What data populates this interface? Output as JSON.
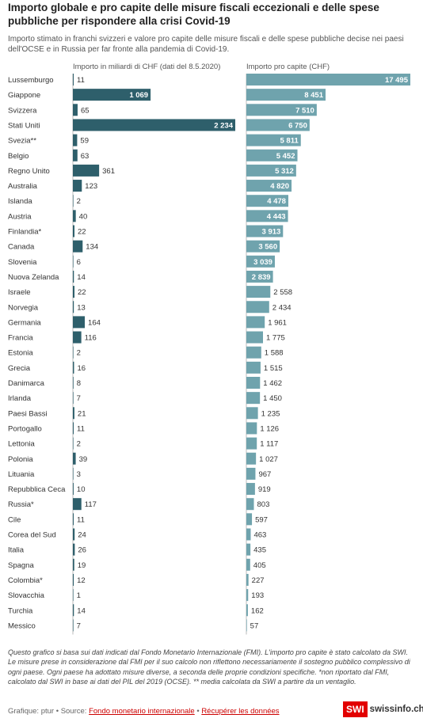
{
  "title": "Importo globale e pro capite delle misure fiscali eccezionali e delle spese pubbliche per rispondere alla crisi Covid-19",
  "subtitle": "Importo stimato in franchi svizzeri e valore pro capite delle misure fiscali e delle spese pubbliche decise nei paesi dell'OCSE e in Russia per far fronte alla pandemia di Covid-19.",
  "notes": "Questo grafico si basa sui dati indicati dal Fondo Monetario Internazionale (FMI). L'importo pro capite è stato calcolato da SWI. Le misure prese in considerazione dal FMI per il suo calcolo non riflettono necessariamente il sostegno pubblico complessivo di ogni paese. Ogni paese ha adottato misure diverse, a seconda delle proprie condizioni specifiche. *non riportato dal FMI, calcolato dal SWI in base ai dati del PIL del 2019 (OCSE). ** media calcolata da SWI a partire da un ventaglio.",
  "footer": {
    "credit": "Grafique: ptur • Source:",
    "source_link": "Fondo monetario internazionale",
    "separator": "•",
    "data_link": "Récupérer les données"
  },
  "logo": {
    "box": "SWI",
    "text": "swissinfo.ch"
  },
  "colors": {
    "total_bar": "#2e5f6b",
    "per_capita_bar": "#6fa3ad"
  },
  "chart_data": {
    "type": "bar",
    "categories": [
      "Lussemburgo",
      "Giappone",
      "Svizzera",
      "Stati Uniti",
      "Svezia**",
      "Belgio",
      "Regno Unito",
      "Australia",
      "Islanda",
      "Austria",
      "Finlandia*",
      "Canada",
      "Slovenia",
      "Nuova Zelanda",
      "Israele",
      "Norvegia",
      "Germania",
      "Francia",
      "Estonia",
      "Grecia",
      "Danimarca",
      "Irlanda",
      "Paesi Bassi",
      "Portogallo",
      "Lettonia",
      "Polonia",
      "Lituania",
      "Repubblica Ceca",
      "Russia*",
      "Cile",
      "Corea del Sud",
      "Italia",
      "Spagna",
      "Colombia*",
      "Slovacchia",
      "Turchia",
      "Messico"
    ],
    "series": [
      {
        "name": "Importo in miliardi di CHF (dati del 8.5.2020)",
        "values": [
          11,
          1069,
          65,
          2234,
          59,
          63,
          361,
          123,
          2,
          40,
          22,
          134,
          6,
          14,
          22,
          13,
          164,
          116,
          2,
          16,
          8,
          7,
          21,
          11,
          2,
          39,
          3,
          10,
          117,
          11,
          24,
          26,
          19,
          12,
          1,
          14,
          7
        ],
        "labels": [
          "11",
          "1 069",
          "65",
          "2 234",
          "59",
          "63",
          "361",
          "123",
          "2",
          "40",
          "22",
          "134",
          "6",
          "14",
          "22",
          "13",
          "164",
          "116",
          "2",
          "16",
          "8",
          "7",
          "21",
          "11",
          "2",
          "39",
          "3",
          "10",
          "117",
          "11",
          "24",
          "26",
          "19",
          "12",
          "1",
          "14",
          "7"
        ]
      },
      {
        "name": "Importo pro capite (CHF)",
        "values": [
          17495,
          8451,
          7510,
          6750,
          5811,
          5452,
          5312,
          4820,
          4478,
          4443,
          3913,
          3560,
          3039,
          2839,
          2558,
          2434,
          1961,
          1775,
          1588,
          1515,
          1462,
          1450,
          1235,
          1126,
          1117,
          1027,
          967,
          919,
          803,
          597,
          463,
          435,
          405,
          227,
          193,
          162,
          57
        ],
        "labels": [
          "17 495",
          "8 451",
          "7 510",
          "6 750",
          "5 811",
          "5 452",
          "5 312",
          "4 820",
          "4 478",
          "4 443",
          "3 913",
          "3 560",
          "3 039",
          "2 839",
          "2 558",
          "2 434",
          "1 961",
          "1 775",
          "1 588",
          "1 515",
          "1 462",
          "1 450",
          "1 235",
          "1 126",
          "1 117",
          "1 027",
          "967",
          "919",
          "803",
          "597",
          "463",
          "435",
          "405",
          "227",
          "193",
          "162",
          "57"
        ]
      }
    ],
    "xlim_total": [
      0,
      2234
    ],
    "xlim_per_capita": [
      0,
      17495
    ],
    "grid": false,
    "legend": "none"
  }
}
